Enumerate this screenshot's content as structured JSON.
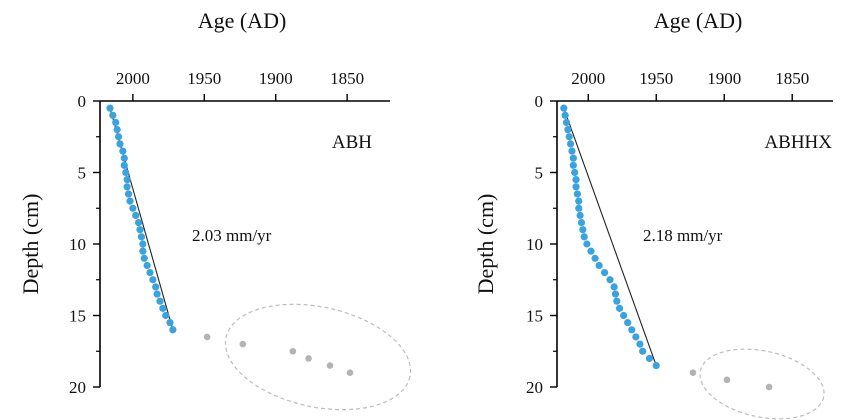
{
  "chart_data": [
    {
      "type": "scatter",
      "site_label": "ABH",
      "rate_label": "2.03 mm/yr",
      "xlabel": "Age (AD)",
      "ylabel": "Depth (cm)",
      "x_reversed": true,
      "y_reversed": true,
      "xlim": [
        2023,
        1820
      ],
      "ylim": [
        0,
        20
      ],
      "x_ticks": [
        2000,
        1950,
        1900,
        1850
      ],
      "y_ticks": [
        0,
        5,
        10,
        15,
        20
      ],
      "series": [
        {
          "role": "dated",
          "color": "#3aa3dd",
          "points": [
            [
              2016,
              0.5
            ],
            [
              2014,
              1.0
            ],
            [
              2012,
              1.5
            ],
            [
              2011,
              2.0
            ],
            [
              2010,
              2.5
            ],
            [
              2009,
              3.0
            ],
            [
              2007,
              3.5
            ],
            [
              2006,
              4.0
            ],
            [
              2006,
              4.5
            ],
            [
              2005,
              5.0
            ],
            [
              2004,
              5.5
            ],
            [
              2004,
              6.0
            ],
            [
              2003,
              6.5
            ],
            [
              2002,
              7.0
            ],
            [
              2000,
              7.5
            ],
            [
              1998,
              8.0
            ],
            [
              1996,
              8.5
            ],
            [
              1995,
              9.0
            ],
            [
              1994,
              9.5
            ],
            [
              1993,
              10.0
            ],
            [
              1993,
              10.5
            ],
            [
              1992,
              11.0
            ],
            [
              1990,
              11.5
            ],
            [
              1988,
              12.0
            ],
            [
              1986,
              12.5
            ],
            [
              1984,
              13.0
            ],
            [
              1983,
              13.5
            ],
            [
              1981,
              14.0
            ],
            [
              1979,
              14.5
            ],
            [
              1977,
              15.0
            ],
            [
              1974,
              15.5
            ],
            [
              1972,
              16.0
            ]
          ]
        },
        {
          "role": "excluded",
          "color": "#b3b3b3",
          "points": [
            [
              1948,
              16.5
            ],
            [
              1923,
              17.0
            ],
            [
              1888,
              17.5
            ],
            [
              1877,
              18.0
            ],
            [
              1862,
              18.5
            ],
            [
              1848,
              19.0
            ]
          ]
        }
      ],
      "trend_line": [
        [
          2016,
          0.5
        ],
        [
          1972,
          16.0
        ]
      ]
    },
    {
      "type": "scatter",
      "site_label": "ABHHX",
      "rate_label": "2.18 mm/yr",
      "xlabel": "Age (AD)",
      "ylabel": "Depth (cm)",
      "x_reversed": true,
      "y_reversed": true,
      "xlim": [
        2023,
        1820
      ],
      "ylim": [
        0,
        20
      ],
      "x_ticks": [
        2000,
        1950,
        1900,
        1850
      ],
      "y_ticks": [
        0,
        5,
        10,
        15,
        20
      ],
      "series": [
        {
          "role": "dated",
          "color": "#3aa3dd",
          "points": [
            [
              2018,
              0.5
            ],
            [
              2017,
              1.0
            ],
            [
              2016,
              1.5
            ],
            [
              2015,
              2.0
            ],
            [
              2014,
              2.5
            ],
            [
              2013,
              3.0
            ],
            [
              2012,
              3.5
            ],
            [
              2011,
              4.0
            ],
            [
              2011,
              4.5
            ],
            [
              2010,
              5.0
            ],
            [
              2009,
              5.5
            ],
            [
              2009,
              6.0
            ],
            [
              2008,
              6.5
            ],
            [
              2007,
              7.0
            ],
            [
              2007,
              7.5
            ],
            [
              2006,
              8.0
            ],
            [
              2005,
              8.5
            ],
            [
              2004,
              9.0
            ],
            [
              2003,
              9.5
            ],
            [
              2001,
              10.0
            ],
            [
              1998,
              10.5
            ],
            [
              1995,
              11.0
            ],
            [
              1992,
              11.5
            ],
            [
              1988,
              12.0
            ],
            [
              1984,
              12.5
            ],
            [
              1981,
              13.0
            ],
            [
              1980,
              13.5
            ],
            [
              1979,
              14.0
            ],
            [
              1977,
              14.5
            ],
            [
              1974,
              15.0
            ],
            [
              1971,
              15.5
            ],
            [
              1968,
              16.0
            ],
            [
              1965,
              16.5
            ],
            [
              1962,
              17.0
            ],
            [
              1960,
              17.5
            ],
            [
              1955,
              18.0
            ],
            [
              1950,
              18.5
            ]
          ]
        },
        {
          "role": "excluded",
          "color": "#b3b3b3",
          "points": [
            [
              1923,
              19.0
            ],
            [
              1898,
              19.5
            ],
            [
              1867,
              20.0
            ]
          ]
        }
      ],
      "trend_line": [
        [
          2018,
          0.5
        ],
        [
          1950,
          18.5
        ]
      ]
    }
  ]
}
